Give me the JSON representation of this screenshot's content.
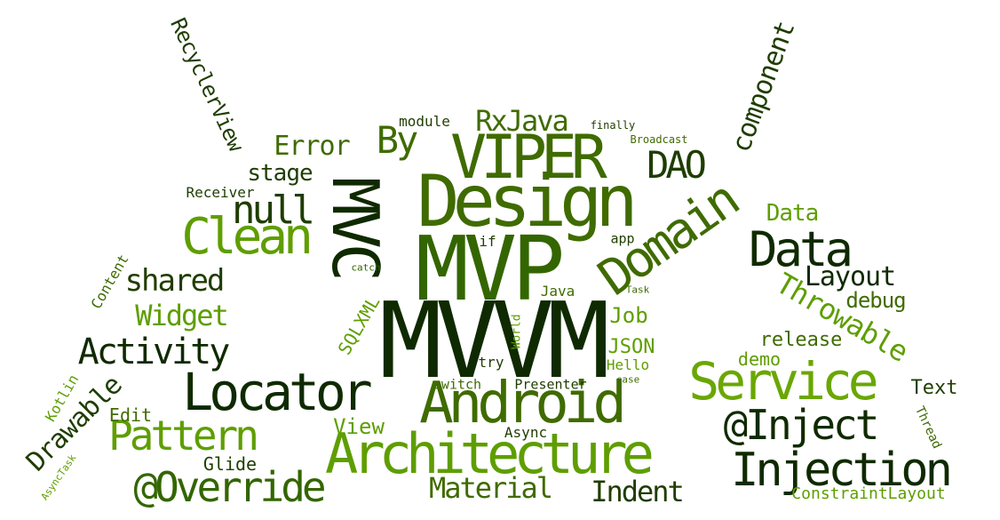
{
  "colors": {
    "darkest": "#0f2a00",
    "dark": "#1f3d00",
    "mid": "#336600",
    "olive": "#3f6b00",
    "bright": "#5e9e00",
    "lime": "#6aa700"
  },
  "words": [
    {
      "text": "MVVM",
      "color": "darkest"
    },
    {
      "text": "MVP",
      "color": "mid"
    },
    {
      "text": "Design",
      "color": "olive"
    },
    {
      "text": "VIPER",
      "color": "olive"
    },
    {
      "text": "MVC",
      "color": "darkest"
    },
    {
      "text": "Android",
      "color": "olive"
    },
    {
      "text": "Architecture",
      "color": "bright"
    },
    {
      "text": "Locator",
      "color": "darkest"
    },
    {
      "text": "Service",
      "color": "lime"
    },
    {
      "text": "Domain",
      "color": "olive"
    },
    {
      "text": "Clean",
      "color": "bright"
    },
    {
      "text": "Data",
      "color": "darkest"
    },
    {
      "text": "@Inject",
      "color": "darkest"
    },
    {
      "text": "Injection",
      "color": "darkest"
    },
    {
      "text": "Pattern",
      "color": "bright"
    },
    {
      "text": "@Override",
      "color": "mid"
    },
    {
      "text": "null",
      "color": "dark"
    },
    {
      "text": "DAO",
      "color": "dark"
    },
    {
      "text": "By",
      "color": "olive"
    },
    {
      "text": "RxJava",
      "color": "olive"
    },
    {
      "text": "Error",
      "color": "olive"
    },
    {
      "text": "stage",
      "color": "dark"
    },
    {
      "text": "module",
      "color": "dark"
    },
    {
      "text": "finally",
      "color": "dark"
    },
    {
      "text": "Broadcast",
      "color": "olive"
    },
    {
      "text": "component",
      "color": "dark"
    },
    {
      "text": "RecyclerView",
      "color": "dark"
    },
    {
      "text": "Receiver",
      "color": "dark"
    },
    {
      "text": "Data",
      "color": "bright"
    },
    {
      "text": "shared",
      "color": "dark"
    },
    {
      "text": "Widget",
      "color": "bright"
    },
    {
      "text": "Activity",
      "color": "darkest"
    },
    {
      "text": "Content",
      "color": "olive"
    },
    {
      "text": "catch",
      "color": "mid"
    },
    {
      "text": "SQLXML",
      "color": "bright"
    },
    {
      "text": "if",
      "color": "dark"
    },
    {
      "text": "World",
      "color": "bright"
    },
    {
      "text": "app",
      "color": "dark"
    },
    {
      "text": "Java",
      "color": "olive"
    },
    {
      "text": "Task",
      "color": "olive"
    },
    {
      "text": "Layout",
      "color": "darkest"
    },
    {
      "text": "debug",
      "color": "olive"
    },
    {
      "text": "Throwable",
      "color": "bright"
    },
    {
      "text": "Job",
      "color": "bright"
    },
    {
      "text": "JSON",
      "color": "bright"
    },
    {
      "text": "Hello",
      "color": "bright"
    },
    {
      "text": "try",
      "color": "dark"
    },
    {
      "text": "release",
      "color": "olive"
    },
    {
      "text": "demo",
      "color": "bright"
    },
    {
      "text": "switch",
      "color": "olive"
    },
    {
      "text": "Presenter",
      "color": "dark"
    },
    {
      "text": "case",
      "color": "olive"
    },
    {
      "text": "Text",
      "color": "dark"
    },
    {
      "text": "Thread",
      "color": "olive"
    },
    {
      "text": "Kotlin",
      "color": "bright"
    },
    {
      "text": "Drawable",
      "color": "dark"
    },
    {
      "text": "Edit",
      "color": "olive"
    },
    {
      "text": "View",
      "color": "bright"
    },
    {
      "text": "Async",
      "color": "dark"
    },
    {
      "text": "AsyncTask",
      "color": "bright"
    },
    {
      "text": "Glide",
      "color": "dark"
    },
    {
      "text": "Material",
      "color": "olive"
    },
    {
      "text": "Indent",
      "color": "dark"
    },
    {
      "text": "ConstraintLayout",
      "color": "bright"
    }
  ]
}
